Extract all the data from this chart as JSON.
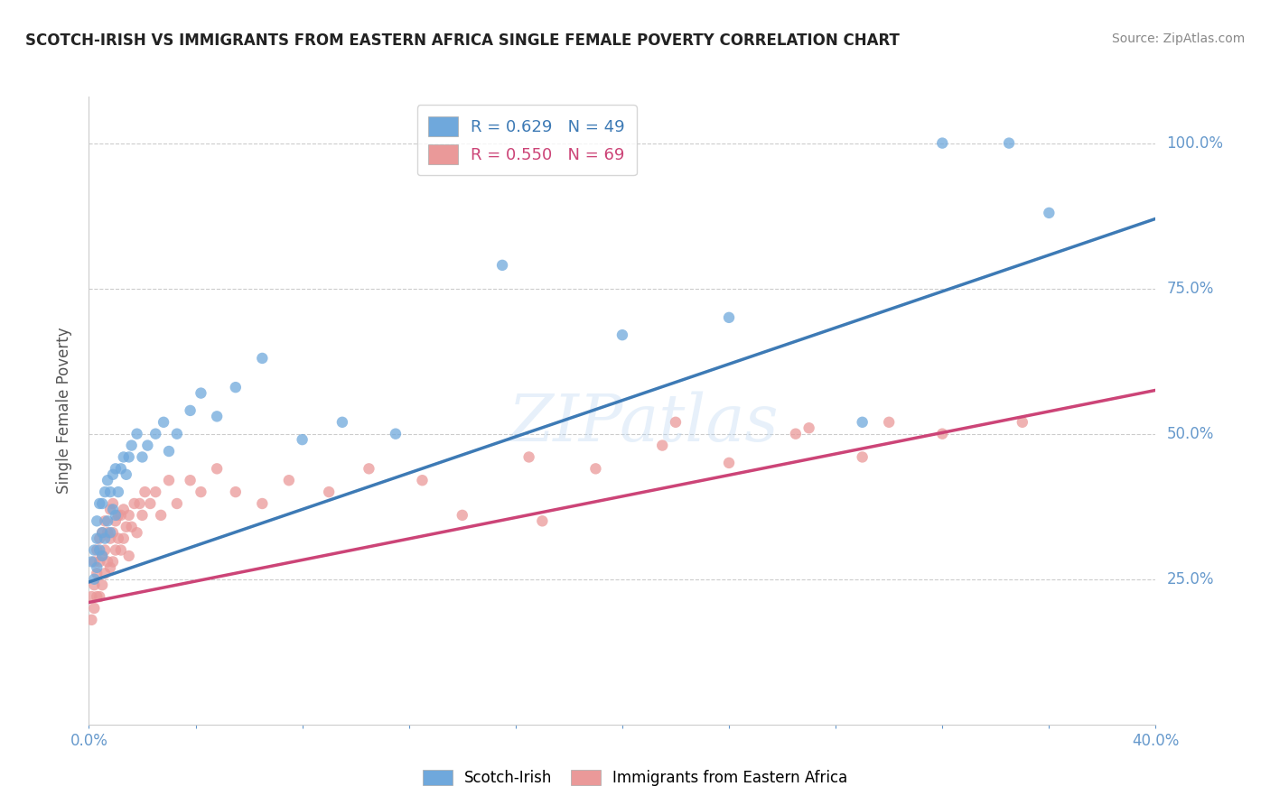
{
  "title": "SCOTCH-IRISH VS IMMIGRANTS FROM EASTERN AFRICA SINGLE FEMALE POVERTY CORRELATION CHART",
  "source": "Source: ZipAtlas.com",
  "ylabel": "Single Female Poverty",
  "xlim": [
    0.0,
    0.4
  ],
  "ylim": [
    0.0,
    1.08
  ],
  "yticks": [
    0.25,
    0.5,
    0.75,
    1.0
  ],
  "ytick_labels": [
    "25.0%",
    "50.0%",
    "75.0%",
    "100.0%"
  ],
  "blue_R": 0.629,
  "blue_N": 49,
  "pink_R": 0.55,
  "pink_N": 69,
  "blue_color": "#6fa8dc",
  "pink_color": "#ea9999",
  "blue_line_color": "#3d7ab5",
  "pink_line_color": "#cc4477",
  "grid_color": "#cccccc",
  "title_color": "#222222",
  "tick_color": "#6699cc",
  "background_color": "#ffffff",
  "blue_scatter_x": [
    0.001,
    0.002,
    0.002,
    0.003,
    0.003,
    0.003,
    0.004,
    0.004,
    0.005,
    0.005,
    0.005,
    0.006,
    0.006,
    0.007,
    0.007,
    0.008,
    0.008,
    0.009,
    0.009,
    0.01,
    0.01,
    0.011,
    0.012,
    0.013,
    0.014,
    0.015,
    0.016,
    0.018,
    0.02,
    0.022,
    0.025,
    0.028,
    0.03,
    0.033,
    0.038,
    0.042,
    0.048,
    0.055,
    0.065,
    0.08,
    0.095,
    0.115,
    0.155,
    0.2,
    0.24,
    0.29,
    0.32,
    0.345,
    0.36
  ],
  "blue_scatter_y": [
    0.28,
    0.25,
    0.3,
    0.27,
    0.32,
    0.35,
    0.3,
    0.38,
    0.29,
    0.33,
    0.38,
    0.32,
    0.4,
    0.35,
    0.42,
    0.33,
    0.4,
    0.37,
    0.43,
    0.36,
    0.44,
    0.4,
    0.44,
    0.46,
    0.43,
    0.46,
    0.48,
    0.5,
    0.46,
    0.48,
    0.5,
    0.52,
    0.47,
    0.5,
    0.54,
    0.57,
    0.53,
    0.58,
    0.63,
    0.49,
    0.52,
    0.5,
    0.79,
    0.67,
    0.7,
    0.52,
    1.0,
    1.0,
    0.88
  ],
  "pink_scatter_x": [
    0.001,
    0.001,
    0.002,
    0.002,
    0.002,
    0.003,
    0.003,
    0.003,
    0.004,
    0.004,
    0.004,
    0.005,
    0.005,
    0.005,
    0.006,
    0.006,
    0.006,
    0.007,
    0.007,
    0.008,
    0.008,
    0.008,
    0.009,
    0.009,
    0.009,
    0.01,
    0.01,
    0.011,
    0.011,
    0.012,
    0.012,
    0.013,
    0.013,
    0.014,
    0.015,
    0.015,
    0.016,
    0.017,
    0.018,
    0.019,
    0.02,
    0.021,
    0.023,
    0.025,
    0.027,
    0.03,
    0.033,
    0.038,
    0.042,
    0.048,
    0.055,
    0.065,
    0.075,
    0.09,
    0.105,
    0.125,
    0.14,
    0.165,
    0.19,
    0.215,
    0.24,
    0.265,
    0.29,
    0.32,
    0.35,
    0.17,
    0.22,
    0.27,
    0.3
  ],
  "pink_scatter_y": [
    0.18,
    0.22,
    0.2,
    0.24,
    0.28,
    0.22,
    0.26,
    0.3,
    0.22,
    0.28,
    0.32,
    0.24,
    0.29,
    0.33,
    0.26,
    0.3,
    0.35,
    0.28,
    0.33,
    0.27,
    0.32,
    0.37,
    0.28,
    0.33,
    0.38,
    0.3,
    0.35,
    0.32,
    0.36,
    0.3,
    0.36,
    0.32,
    0.37,
    0.34,
    0.29,
    0.36,
    0.34,
    0.38,
    0.33,
    0.38,
    0.36,
    0.4,
    0.38,
    0.4,
    0.36,
    0.42,
    0.38,
    0.42,
    0.4,
    0.44,
    0.4,
    0.38,
    0.42,
    0.4,
    0.44,
    0.42,
    0.36,
    0.46,
    0.44,
    0.48,
    0.45,
    0.5,
    0.46,
    0.5,
    0.52,
    0.35,
    0.52,
    0.51,
    0.52
  ],
  "blue_regline_x": [
    0.0,
    0.4
  ],
  "blue_regline_y": [
    0.245,
    0.87
  ],
  "pink_regline_x": [
    0.0,
    0.4
  ],
  "pink_regline_y": [
    0.21,
    0.575
  ]
}
